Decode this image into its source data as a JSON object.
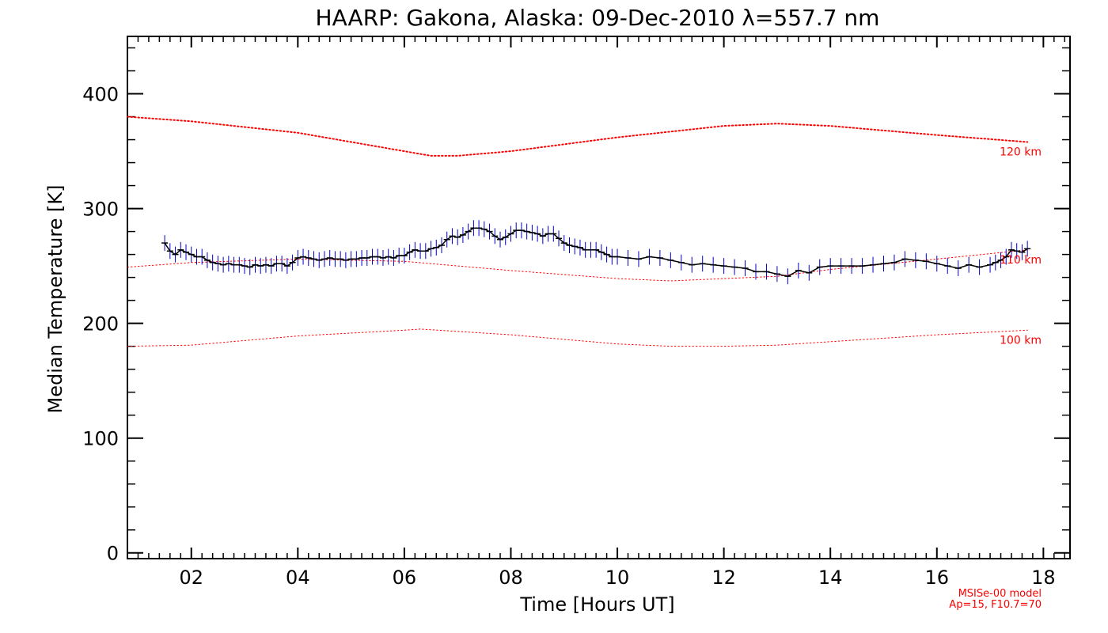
{
  "chart_data": {
    "type": "line",
    "title": "HAARP: Gakona,  Alaska: 09-Dec-2010 λ=557.7 nm",
    "xlabel": "Time [Hours UT]",
    "ylabel": "Median Temperature [K]",
    "xlim": [
      0.8,
      18.5
    ],
    "ylim": [
      -5,
      450
    ],
    "x_ticks": [
      2,
      4,
      6,
      8,
      10,
      12,
      14,
      16,
      18
    ],
    "x_tick_labels": [
      "02",
      "04",
      "06",
      "08",
      "10",
      "12",
      "14",
      "16",
      "18"
    ],
    "y_ticks": [
      0,
      100,
      200,
      300,
      400
    ],
    "y_tick_labels": [
      "0",
      "100",
      "200",
      "300",
      "400"
    ],
    "grid": false,
    "series": [
      {
        "name": "",
        "color": "#000000",
        "errorbar_color": "#0000cc",
        "x": [
          1.5,
          1.6,
          1.7,
          1.8,
          1.9,
          2.0,
          2.1,
          2.2,
          2.3,
          2.4,
          2.5,
          2.6,
          2.7,
          2.8,
          2.9,
          3.0,
          3.1,
          3.2,
          3.3,
          3.4,
          3.5,
          3.6,
          3.7,
          3.8,
          3.9,
          4.0,
          4.1,
          4.2,
          4.3,
          4.4,
          4.5,
          4.6,
          4.7,
          4.8,
          4.9,
          5.0,
          5.1,
          5.2,
          5.3,
          5.4,
          5.5,
          5.6,
          5.7,
          5.8,
          5.9,
          6.0,
          6.1,
          6.2,
          6.3,
          6.4,
          6.5,
          6.6,
          6.7,
          6.8,
          6.9,
          7.0,
          7.1,
          7.2,
          7.3,
          7.4,
          7.5,
          7.6,
          7.7,
          7.8,
          7.9,
          8.0,
          8.1,
          8.2,
          8.3,
          8.4,
          8.5,
          8.6,
          8.7,
          8.8,
          8.9,
          9.0,
          9.1,
          9.2,
          9.3,
          9.4,
          9.5,
          9.6,
          9.7,
          9.8,
          9.9,
          10.0,
          10.2,
          10.4,
          10.6,
          10.8,
          11.0,
          11.2,
          11.4,
          11.6,
          11.8,
          12.0,
          12.2,
          12.4,
          12.6,
          12.8,
          13.0,
          13.2,
          13.4,
          13.6,
          13.8,
          14.0,
          14.2,
          14.4,
          14.6,
          14.8,
          15.0,
          15.2,
          15.4,
          15.6,
          15.8,
          16.0,
          16.2,
          16.4,
          16.6,
          16.8,
          17.0,
          17.1,
          17.2,
          17.3,
          17.4,
          17.5,
          17.6,
          17.7
        ],
        "y": [
          270,
          263,
          260,
          264,
          262,
          260,
          258,
          258,
          255,
          253,
          252,
          251,
          252,
          251,
          251,
          250,
          249,
          251,
          250,
          251,
          250,
          252,
          252,
          250,
          253,
          257,
          258,
          257,
          256,
          255,
          256,
          257,
          256,
          256,
          255,
          256,
          256,
          257,
          257,
          258,
          258,
          257,
          258,
          257,
          259,
          259,
          262,
          264,
          263,
          263,
          265,
          266,
          268,
          273,
          276,
          275,
          277,
          280,
          283,
          283,
          282,
          280,
          276,
          273,
          275,
          278,
          281,
          281,
          280,
          279,
          278,
          276,
          278,
          278,
          274,
          270,
          268,
          267,
          266,
          264,
          264,
          264,
          262,
          260,
          258,
          258,
          257,
          256,
          258,
          257,
          255,
          253,
          251,
          252,
          251,
          250,
          249,
          248,
          245,
          245,
          243,
          241,
          246,
          244,
          249,
          250,
          250,
          250,
          250,
          251,
          252,
          253,
          256,
          255,
          254,
          252,
          250,
          248,
          251,
          249,
          251,
          253,
          255,
          258,
          264,
          263,
          262,
          265
        ]
      },
      {
        "name": "120 km",
        "color": "#ff0000",
        "x": [
          0.8,
          2,
          4,
          6,
          6.5,
          7,
          8,
          10,
          12,
          13,
          14,
          16,
          17.7
        ],
        "y": [
          380,
          376,
          366,
          350,
          346,
          346,
          350,
          362,
          372,
          374,
          372,
          364,
          358
        ]
      },
      {
        "name": "110 km",
        "color": "#ff0000",
        "x": [
          0.8,
          2,
          4,
          6,
          8,
          10,
          11,
          12,
          13,
          14,
          16,
          17.7
        ],
        "y": [
          249,
          253,
          256,
          254,
          246,
          239,
          237,
          239,
          241,
          247,
          256,
          264
        ]
      },
      {
        "name": "100 km",
        "color": "#ff0000",
        "x": [
          0.8,
          2,
          4,
          6,
          6.3,
          8,
          10,
          11,
          12,
          13,
          14,
          16,
          17.7
        ],
        "y": [
          180,
          181,
          189,
          194,
          195,
          190,
          182,
          180,
          180,
          181,
          184,
          190,
          194
        ]
      }
    ],
    "annotations": [
      "MSISe-00 model",
      "Ap=15, F10.7=70"
    ]
  }
}
